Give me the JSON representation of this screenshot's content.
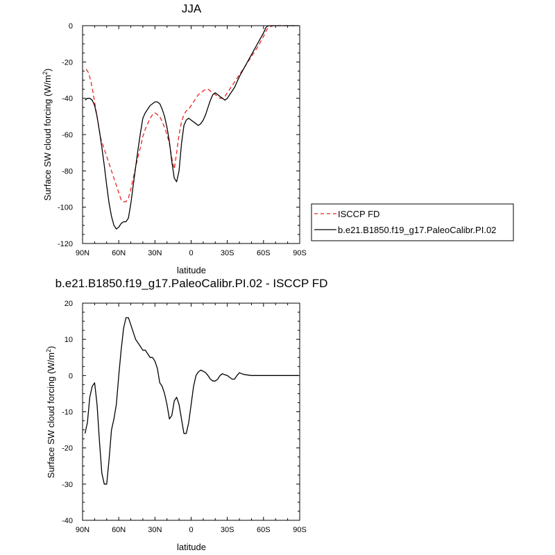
{
  "chart_data": [
    {
      "type": "line",
      "title": "JJA",
      "xlabel": "latitude",
      "ylabel": "Surface SW cloud forcing (W/m",
      "ylabel_sup": "2",
      "ylabel_close": ")",
      "x_ticks": [
        {
          "value": 90,
          "label": "90N"
        },
        {
          "value": 60,
          "label": "60N"
        },
        {
          "value": 30,
          "label": "30N"
        },
        {
          "value": 0,
          "label": "0"
        },
        {
          "value": -30,
          "label": "30S"
        },
        {
          "value": -60,
          "label": "60S"
        },
        {
          "value": -90,
          "label": "90S"
        }
      ],
      "xlim": [
        90,
        -90
      ],
      "ylim": [
        -120,
        0
      ],
      "y_ticks": [
        0,
        -20,
        -40,
        -60,
        -80,
        -100,
        -120
      ],
      "legend_position": "right",
      "series": [
        {
          "name": "ISCCP FD",
          "color": "#e8231f",
          "dash": "dashed",
          "x": [
            87,
            85,
            83,
            81,
            79,
            77,
            75,
            72,
            69,
            66,
            63,
            60,
            58,
            56,
            54,
            52,
            50,
            48,
            46,
            44,
            42,
            40,
            38,
            36,
            34,
            32,
            30,
            28,
            26,
            24,
            22,
            20,
            18,
            16,
            14,
            12,
            10,
            8,
            6,
            4,
            2,
            0,
            -2,
            -4,
            -6,
            -8,
            -10,
            -12,
            -14,
            -16,
            -18,
            -20,
            -22,
            -24,
            -26,
            -28,
            -30,
            -32,
            -34,
            -36,
            -38,
            -40,
            -45,
            -50,
            -55,
            -60,
            -62,
            -64,
            -66,
            -68,
            -70,
            -72,
            -75,
            -80,
            -85,
            -89
          ],
          "values": [
            -24,
            -26,
            -31,
            -38,
            -46,
            -54,
            -62,
            -68,
            -74,
            -80,
            -86,
            -92,
            -96,
            -97,
            -97,
            -95,
            -90,
            -84,
            -78,
            -72,
            -67,
            -61,
            -57,
            -54,
            -51,
            -49,
            -48,
            -49,
            -50,
            -53,
            -56,
            -60,
            -65,
            -73,
            -79,
            -70,
            -60,
            -53,
            -49,
            -47,
            -46,
            -44,
            -42,
            -40,
            -38,
            -37,
            -36,
            -35,
            -35,
            -36,
            -37,
            -38,
            -39,
            -40,
            -40,
            -39,
            -37,
            -35,
            -33,
            -31,
            -29,
            -27,
            -22,
            -17,
            -12,
            -6,
            -3,
            -1,
            -0.5,
            0,
            0,
            0,
            0,
            0,
            0,
            0
          ]
        },
        {
          "name": "b.e21.B1850.f19_g17.PaleoCalibr.PI.02",
          "color": "#000000",
          "dash": "solid",
          "x": [
            88,
            86,
            84,
            82,
            80,
            78,
            76,
            74,
            72,
            70,
            68,
            66,
            64,
            62,
            60,
            58,
            56,
            54,
            52,
            50,
            48,
            46,
            44,
            42,
            40,
            38,
            36,
            34,
            32,
            30,
            28,
            26,
            24,
            22,
            20,
            18,
            16,
            14,
            12,
            10,
            8,
            6,
            4,
            2,
            0,
            -2,
            -4,
            -6,
            -8,
            -10,
            -12,
            -14,
            -16,
            -18,
            -20,
            -22,
            -24,
            -26,
            -28,
            -30,
            -32,
            -34,
            -36,
            -38,
            -40,
            -45,
            -50,
            -55,
            -60,
            -62,
            -64,
            -66,
            -68,
            -70,
            -72,
            -75,
            -80,
            -85,
            -89
          ],
          "values": [
            -41,
            -40,
            -40,
            -41,
            -44,
            -50,
            -58,
            -67,
            -77,
            -88,
            -98,
            -105,
            -110,
            -112,
            -111,
            -109,
            -108,
            -108,
            -106,
            -98,
            -88,
            -78,
            -68,
            -59,
            -51,
            -48,
            -46,
            -44,
            -43,
            -42,
            -42,
            -43,
            -46,
            -50,
            -56,
            -64,
            -75,
            -84,
            -86,
            -80,
            -65,
            -55,
            -52,
            -51,
            -52,
            -53,
            -54,
            -55,
            -54,
            -52,
            -49,
            -45,
            -41,
            -38,
            -37,
            -38,
            -39,
            -40,
            -41,
            -40,
            -38,
            -36,
            -34,
            -31,
            -28,
            -22,
            -16,
            -10,
            -4,
            -1,
            0,
            0,
            0,
            0,
            0,
            0,
            0,
            0,
            0
          ]
        }
      ]
    },
    {
      "type": "line",
      "title": "b.e21.B1850.f19_g17.PaleoCalibr.PI.02 - ISCCP FD",
      "xlabel": "latitude",
      "ylabel": "Surface SW cloud forcing (W/m",
      "ylabel_sup": "2",
      "ylabel_close": ")",
      "x_ticks": [
        {
          "value": 90,
          "label": "90N"
        },
        {
          "value": 60,
          "label": "60N"
        },
        {
          "value": 30,
          "label": "30N"
        },
        {
          "value": 0,
          "label": "0"
        },
        {
          "value": -30,
          "label": "30S"
        },
        {
          "value": -60,
          "label": "60S"
        },
        {
          "value": -90,
          "label": "90S"
        }
      ],
      "xlim": [
        90,
        -90
      ],
      "ylim": [
        -40,
        20
      ],
      "y_ticks": [
        20,
        10,
        0,
        -10,
        -20,
        -30,
        -40
      ],
      "series": [
        {
          "color": "#000000",
          "dash": "solid",
          "x": [
            88,
            86,
            84,
            82,
            80,
            78,
            76,
            74,
            72,
            70,
            68,
            66,
            64,
            62,
            60,
            58,
            56,
            54,
            52,
            50,
            48,
            46,
            44,
            42,
            40,
            38,
            36,
            34,
            32,
            30,
            28,
            26,
            24,
            22,
            20,
            18,
            16,
            14,
            12,
            10,
            8,
            6,
            4,
            2,
            0,
            -2,
            -4,
            -6,
            -8,
            -10,
            -12,
            -14,
            -16,
            -18,
            -20,
            -22,
            -24,
            -26,
            -28,
            -30,
            -32,
            -34,
            -36,
            -38,
            -40,
            -42,
            -44,
            -46,
            -50,
            -52,
            -54,
            -56,
            -58,
            -60,
            -62,
            -64,
            -66,
            -70,
            -75,
            -80,
            -85,
            -89
          ],
          "values": [
            -16,
            -13,
            -6,
            -3,
            -2,
            -8,
            -18,
            -27,
            -30,
            -30,
            -23,
            -15,
            -12,
            -8,
            0,
            7,
            13,
            16,
            16,
            14,
            12,
            10,
            9,
            8,
            7,
            7,
            6,
            5,
            5,
            4,
            2,
            -2,
            -3,
            -5,
            -8,
            -12,
            -11,
            -7,
            -6,
            -8,
            -12,
            -16,
            -16,
            -13,
            -8,
            -3,
            0,
            1,
            1.5,
            1.2,
            0.8,
            0,
            -1,
            -1.5,
            -1.5,
            -1,
            0,
            0.5,
            0.2,
            0,
            -0.5,
            -1,
            -1,
            0,
            0.8,
            0.5,
            0.3,
            0.2,
            0,
            0,
            0,
            0,
            0,
            0,
            0,
            0,
            0,
            0,
            0,
            0,
            0,
            0
          ]
        }
      ]
    }
  ]
}
